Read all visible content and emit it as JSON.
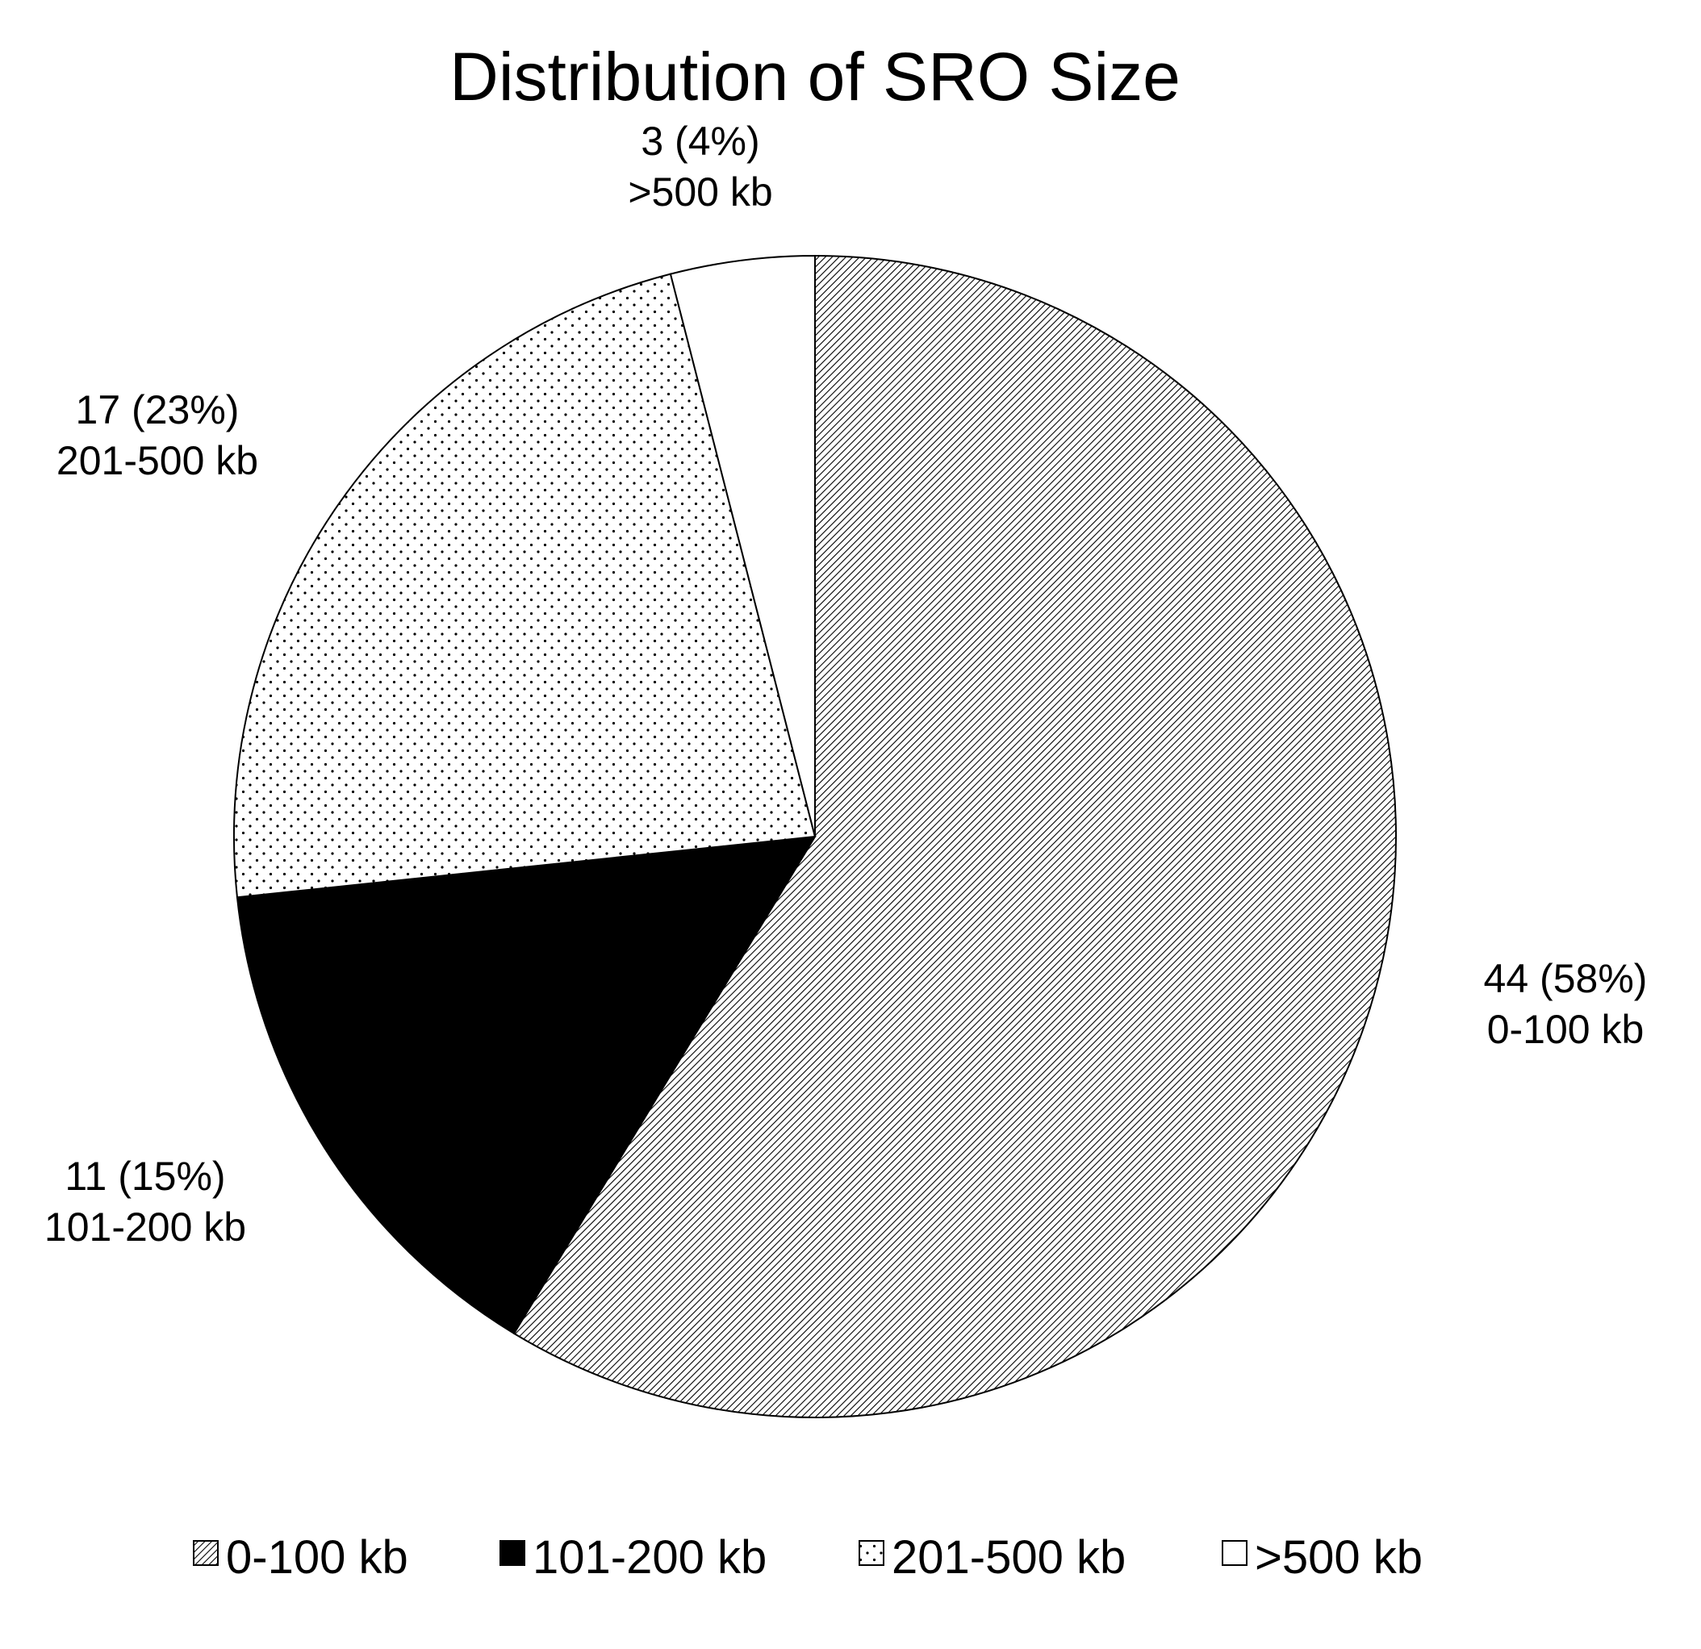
{
  "chart_data": {
    "type": "pie",
    "title": "Distribution of SRO Size",
    "start_angle_deg": 0,
    "direction": "clockwise",
    "slices": [
      {
        "category": "0-100 kb",
        "value": 44,
        "percent_label": "44 (58%)",
        "pattern": "diagonal-hatch",
        "color": "#000000"
      },
      {
        "category": "101-200 kb",
        "value": 11,
        "percent_label": "11 (15%)",
        "pattern": "solid",
        "color": "#000000"
      },
      {
        "category": "201-500 kb",
        "value": 17,
        "percent_label": "17 (23%)",
        "pattern": "dots",
        "color": "#000000"
      },
      {
        "category": ">500 kb",
        "value": 3,
        "percent_label": "3 (4%)",
        "pattern": "none",
        "color": "#ffffff"
      }
    ],
    "legend": {
      "position": "bottom",
      "items": [
        "0-100 kb",
        "101-200 kb",
        "201-500 kb",
        ">500 kb"
      ]
    }
  }
}
